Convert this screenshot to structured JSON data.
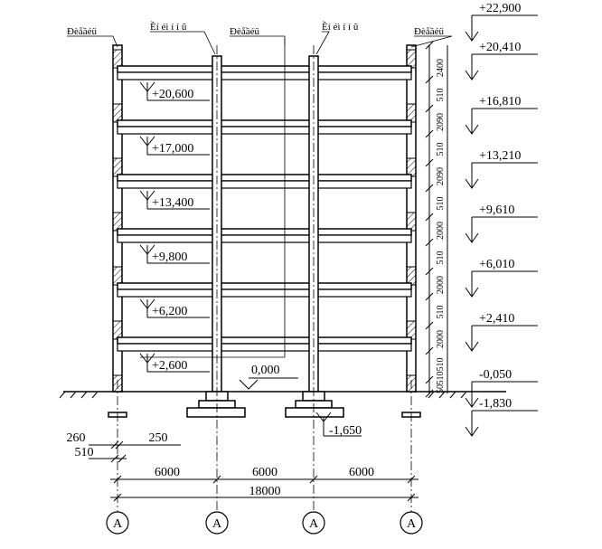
{
  "labels": {
    "wall_left": "Đèåầéü",
    "col_left": "Ềí éì í í ũ",
    "wall_center": "Đèåầéü",
    "col_right": "Ềí éì í í ũ",
    "wall_right": "Đèåầéü"
  },
  "right_elevations": [
    "+22,900",
    "+20,410",
    "+16,810",
    "+13,210",
    "+9,610",
    "+6,010",
    "+2,410",
    "-0,050",
    "-1,830"
  ],
  "inner_elevations": [
    "+20,600",
    "+17,000",
    "+13,400",
    "+9,800",
    "+6,200",
    "+2,600"
  ],
  "ground_level": "0,000",
  "foundation_level": "-1,650",
  "vertical_dims": [
    "2400",
    "510",
    "2090",
    "510",
    "2090",
    "510",
    "2000",
    "510",
    "2000",
    "510",
    "2000",
    "510",
    "510",
    "50"
  ],
  "wall_dims": {
    "d260": "260",
    "d510": "510",
    "d250": "250"
  },
  "spans": [
    "6000",
    "6000",
    "6000"
  ],
  "total_span": "18000",
  "axes": [
    "A",
    "A",
    "A",
    "A"
  ]
}
